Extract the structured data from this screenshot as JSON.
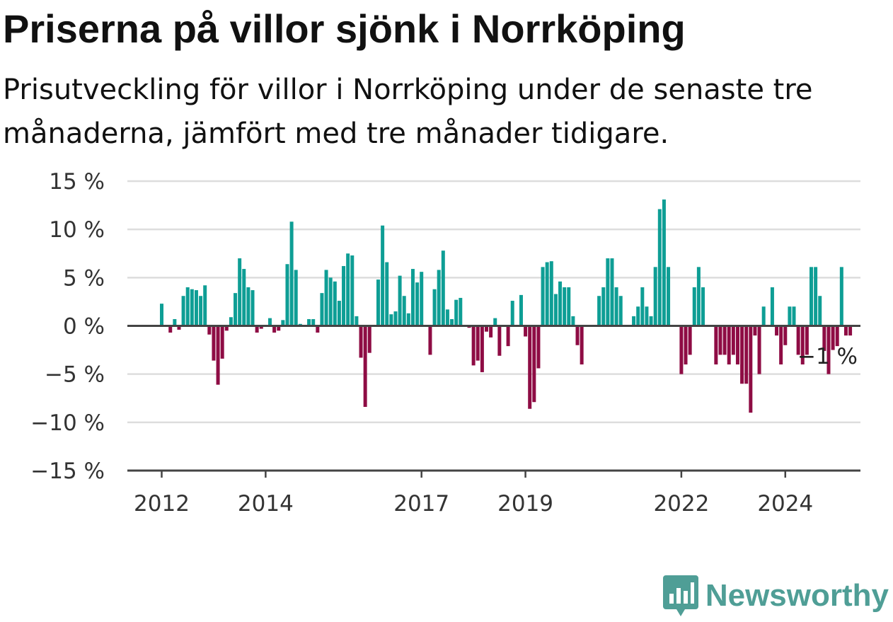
{
  "title": "Priserna på villor sjönk i Norrköping",
  "subtitle": "Prisutveckling för villor i Norrköping under de senaste tre månaderna, jämfört med tre månader tidigare.",
  "logo": {
    "text": "Newsworthy",
    "icon": "newsworthy-bar-chart-icon"
  },
  "colors": {
    "positive": "#0e9e95",
    "negative": "#8e0c44",
    "grid": "#dddddd",
    "axis": "#444444",
    "logo": "#4f9e96"
  },
  "chart_data": {
    "type": "bar",
    "ylim": [
      -15,
      15
    ],
    "ytick_values": [
      15,
      10,
      5,
      0,
      -5,
      -10,
      -15
    ],
    "ytick_labels": [
      "15 %",
      "10 %",
      "5 %",
      "0 %",
      "−5 %",
      "−10 %",
      "−15 %"
    ],
    "xticks": [
      {
        "label": "2012",
        "index": 0
      },
      {
        "label": "2014",
        "index": 24
      },
      {
        "label": "2017",
        "index": 60
      },
      {
        "label": "2019",
        "index": 84
      },
      {
        "label": "2022",
        "index": 120
      },
      {
        "label": "2024",
        "index": 144
      }
    ],
    "grid": true,
    "end_label": "−1 %",
    "start": "2012-01",
    "frequency": "monthly",
    "values": [
      2.3,
      0,
      -0.7,
      0.7,
      -0.4,
      3.1,
      4.0,
      3.8,
      3.7,
      3.1,
      4.2,
      -0.9,
      -3.6,
      -6.1,
      -3.4,
      -0.5,
      0.9,
      3.4,
      7.0,
      5.9,
      4.0,
      3.7,
      -0.7,
      -0.3,
      0,
      0.8,
      -0.7,
      -0.5,
      0.6,
      6.4,
      10.8,
      5.8,
      0.2,
      0.1,
      0.7,
      0.7,
      -0.7,
      3.4,
      5.8,
      5.0,
      4.6,
      2.6,
      6.2,
      7.5,
      7.3,
      1.0,
      -3.3,
      -8.4,
      -2.8,
      0,
      4.8,
      10.4,
      6.6,
      1.2,
      1.5,
      5.2,
      3.1,
      1.3,
      5.9,
      4.5,
      5.6,
      0,
      -3.0,
      3.8,
      5.8,
      7.8,
      1.7,
      0.7,
      2.7,
      2.9,
      0,
      -0.2,
      -4.1,
      -3.6,
      -4.8,
      -0.6,
      -1.2,
      0.8,
      -3.1,
      0,
      -2.1,
      2.6,
      0,
      3.2,
      -1.1,
      -8.6,
      -7.9,
      -4.4,
      6.1,
      6.6,
      6.7,
      3.3,
      4.6,
      4.0,
      4.0,
      1.0,
      -2.0,
      -4.0,
      0,
      0,
      0,
      3.1,
      4.0,
      7.0,
      7.0,
      4.0,
      3.1,
      0,
      0,
      1.0,
      2.0,
      4.0,
      2.0,
      1.0,
      6.1,
      12.1,
      13.1,
      6.1,
      0,
      0,
      -5.0,
      -4.0,
      -3.0,
      4.0,
      6.1,
      4.0,
      0,
      0,
      -4.0,
      -3.0,
      -3.0,
      -4.0,
      -3.0,
      -4.0,
      -6.0,
      -6.0,
      -9.0,
      -1.0,
      -5.0,
      2.0,
      0,
      4.0,
      -1.0,
      -4.0,
      -2.0,
      2.0,
      2.0,
      -3.0,
      -4.0,
      -3.0,
      6.1,
      6.1,
      3.1,
      -2.6,
      -5.0,
      -2.5,
      -2.1,
      6.1,
      -1.0,
      -1.0
    ]
  }
}
